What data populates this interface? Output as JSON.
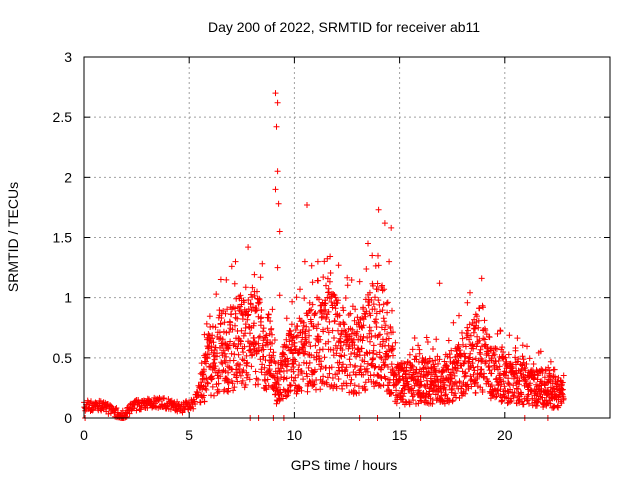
{
  "chart_data": {
    "type": "scatter",
    "title": "Day 200 of 2022, SRMTID for receiver ab11",
    "xlabel": "GPS time / hours",
    "ylabel": "SRMTID / TECUs",
    "xlim": [
      0,
      25
    ],
    "ylim": [
      0,
      3
    ],
    "xticks": [
      0,
      5,
      10,
      15,
      20
    ],
    "yticks": [
      0,
      0.5,
      1,
      1.5,
      2,
      2.5,
      3
    ],
    "xtick_labels": [
      "0",
      "5",
      "10",
      "15",
      "20"
    ],
    "ytick_labels": [
      "0",
      "0.5",
      "1",
      "1.5",
      "2",
      "2.5",
      "3"
    ],
    "grid": true,
    "marker": "+",
    "series": [
      {
        "name": "SRMTID",
        "color": "#ff0000",
        "profile": [
          [
            0.0,
            0.1
          ],
          [
            1.0,
            0.1
          ],
          [
            1.3,
            0.06
          ],
          [
            1.9,
            0.02
          ],
          [
            2.3,
            0.1
          ],
          [
            3.2,
            0.13
          ],
          [
            4.0,
            0.12
          ],
          [
            4.6,
            0.08
          ],
          [
            5.2,
            0.12
          ],
          [
            5.6,
            0.3
          ],
          [
            6.0,
            0.5
          ],
          [
            7.0,
            0.62
          ],
          [
            8.0,
            0.72
          ],
          [
            8.8,
            0.55
          ],
          [
            9.2,
            0.3
          ],
          [
            9.6,
            0.45
          ],
          [
            10.5,
            0.55
          ],
          [
            11.5,
            0.72
          ],
          [
            12.5,
            0.6
          ],
          [
            13.0,
            0.5
          ],
          [
            13.7,
            0.75
          ],
          [
            14.3,
            0.7
          ],
          [
            14.8,
            0.3
          ],
          [
            15.3,
            0.3
          ],
          [
            16.0,
            0.35
          ],
          [
            17.0,
            0.3
          ],
          [
            18.0,
            0.45
          ],
          [
            18.8,
            0.6
          ],
          [
            19.5,
            0.38
          ],
          [
            21.0,
            0.3
          ],
          [
            22.0,
            0.25
          ],
          [
            22.8,
            0.2
          ]
        ],
        "highlights": [
          [
            7.2,
            1.3
          ],
          [
            7.8,
            1.42
          ],
          [
            8.1,
            1.05
          ],
          [
            8.3,
            0.95
          ],
          [
            9.1,
            2.7
          ],
          [
            9.2,
            2.62
          ],
          [
            9.15,
            2.42
          ],
          [
            9.2,
            2.05
          ],
          [
            9.1,
            1.9
          ],
          [
            9.25,
            1.78
          ],
          [
            9.3,
            1.55
          ],
          [
            9.2,
            1.25
          ],
          [
            9.3,
            1.02
          ],
          [
            10.6,
            1.77
          ],
          [
            10.5,
            1.3
          ],
          [
            11.5,
            1.1
          ],
          [
            12.1,
            1.27
          ],
          [
            13.5,
            1.45
          ],
          [
            13.7,
            1.35
          ],
          [
            14.0,
            1.73
          ],
          [
            14.3,
            1.62
          ],
          [
            14.6,
            1.58
          ],
          [
            14.5,
            1.3
          ],
          [
            16.9,
            1.12
          ],
          [
            18.9,
            1.16
          ]
        ],
        "zero_points": [
          0.05,
          1.75,
          1.8,
          1.85,
          1.9,
          7.9,
          8.3,
          9.0,
          9.5,
          13.1,
          13.95,
          16.0,
          20.95,
          22.05
        ]
      }
    ]
  }
}
